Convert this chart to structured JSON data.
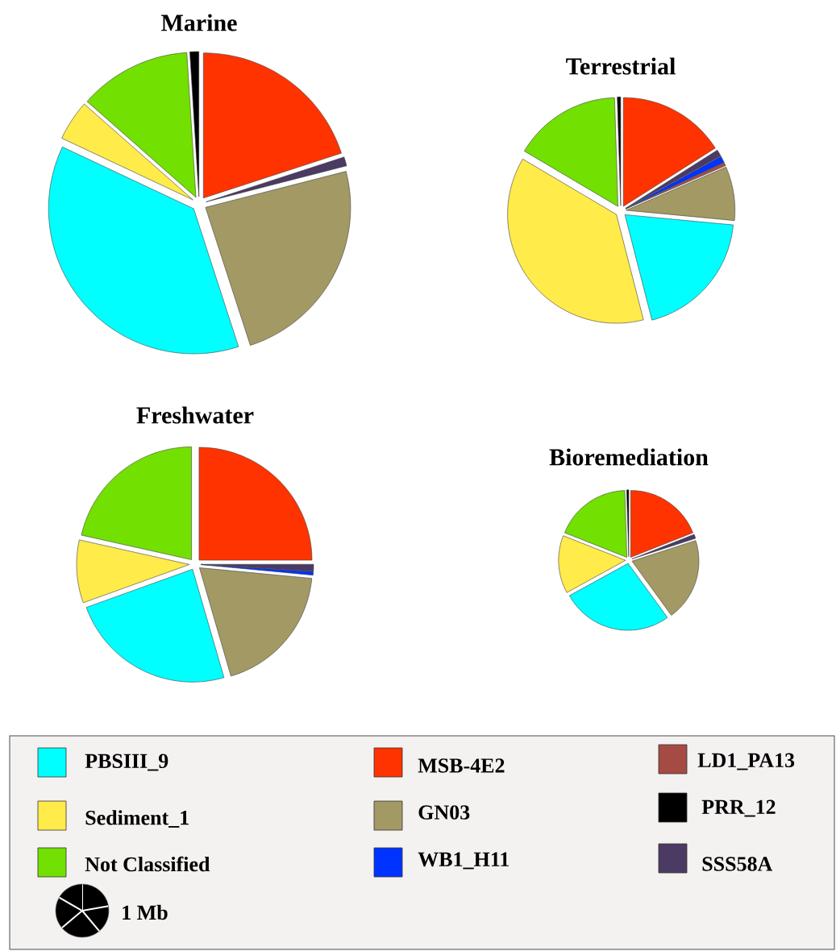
{
  "chart_data": [
    {
      "type": "pie",
      "title": "Marine",
      "categories": [
        "MSB-4E2",
        "SSS58A",
        "WB1_H11",
        "LD1_PA13",
        "GN03",
        "PBSIII_9",
        "Sediment_1",
        "Not Classified",
        "PRR_12"
      ],
      "values": [
        20,
        1,
        0,
        0,
        24,
        37,
        4.5,
        12.5,
        1
      ],
      "colors": [
        "#ff3300",
        "#4b3a63",
        "#0033ff",
        "#a54b43",
        "#a29964",
        "#00ffff",
        "#ffeb4a",
        "#72e000",
        "#000000"
      ],
      "legend": "bottom",
      "annotations": [
        "1 Mb"
      ]
    },
    {
      "type": "pie",
      "title": "Terrestrial",
      "categories": [
        null,
        null,
        null,
        null,
        null,
        null,
        null,
        null,
        null
      ],
      "values": [
        16,
        1,
        1,
        0.5,
        8,
        19.5,
        37.5,
        16,
        0.5
      ],
      "colors": [
        "#ff3300",
        "#4b3a63",
        "#0033ff",
        "#a54b43",
        "#a29964",
        "#00ffff",
        "#ffeb4a",
        "#72e000",
        "#000000"
      ]
    },
    {
      "type": "pie",
      "title": "Freshwater",
      "categories": [
        null,
        null,
        null,
        null,
        null,
        null,
        null,
        null,
        null
      ],
      "values": [
        25,
        1,
        0.5,
        0,
        19,
        24,
        9,
        21.5,
        0
      ],
      "colors": [
        "#ff3300",
        "#4b3a63",
        "#0033ff",
        "#a54b43",
        "#a29964",
        "#00ffff",
        "#ffeb4a",
        "#72e000",
        "#000000"
      ]
    },
    {
      "type": "pie",
      "title": "Bioremediation",
      "categories": [
        null,
        null,
        null,
        null,
        null,
        null,
        null,
        null,
        null
      ],
      "values": [
        19,
        1,
        0,
        0,
        20,
        27,
        14,
        18.5,
        0.5
      ],
      "colors": [
        "#ff3300",
        "#4b3a63",
        "#0033ff",
        "#a54b43",
        "#a29964",
        "#00ffff",
        "#ffeb4a",
        "#72e000",
        "#000000"
      ]
    }
  ]
}
